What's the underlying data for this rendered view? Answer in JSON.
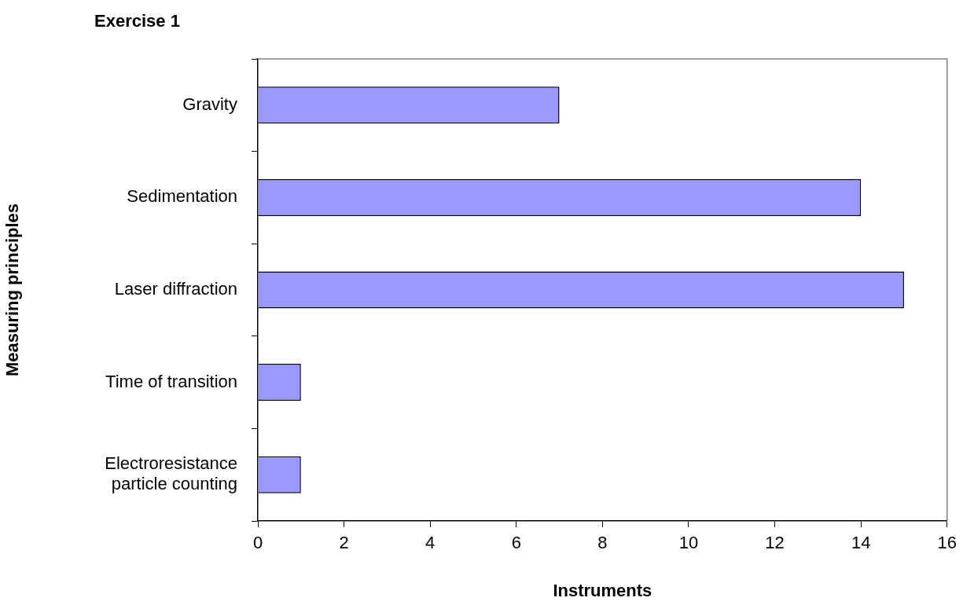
{
  "chart_data": {
    "type": "bar",
    "orientation": "horizontal",
    "title": "Exercise 1",
    "xlabel": "Instruments",
    "ylabel": "Measuring principles",
    "categories": [
      "Gravity",
      "Sedimentation",
      "Laser diffraction",
      "Time of transition",
      "Electroresistance particle counting"
    ],
    "values": [
      7,
      14,
      15,
      1,
      1
    ],
    "color": "#9999ff",
    "xlim": [
      0,
      16
    ],
    "xticks": [
      0,
      2,
      4,
      6,
      8,
      10,
      12,
      14,
      16
    ],
    "grid": false,
    "legend": false
  }
}
